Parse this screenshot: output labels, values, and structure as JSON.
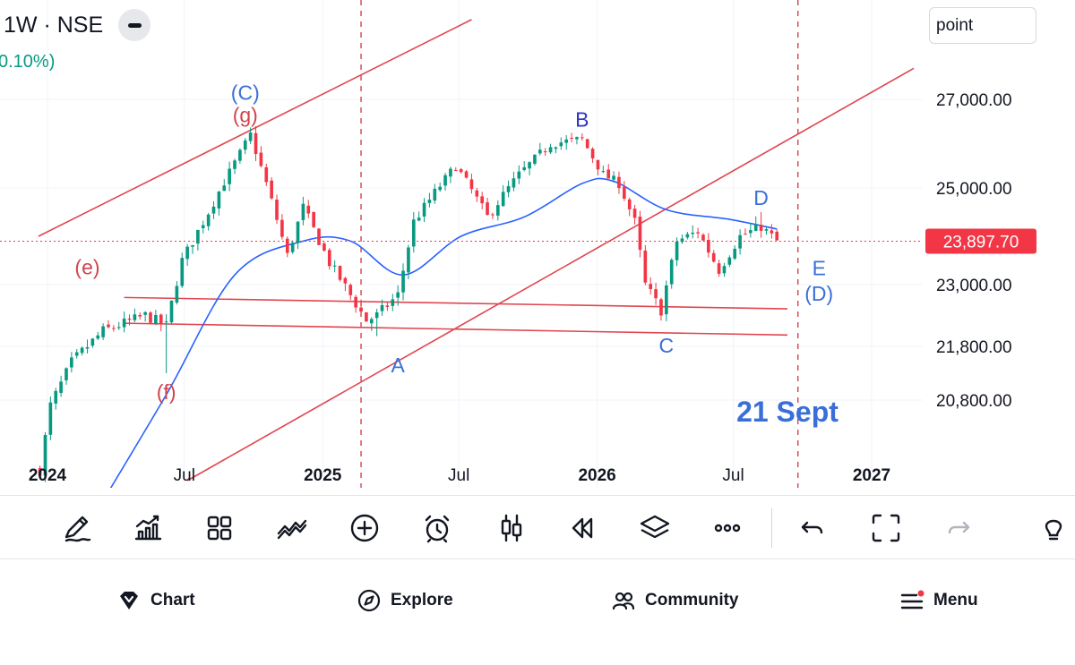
{
  "header": {
    "symbol_text": "1W · NSE",
    "change_text": "0.10%)",
    "unit_select": "point"
  },
  "colors": {
    "up": "#089981",
    "down": "#f23645",
    "ma": "#2962ff",
    "wave": "#3a6fd8",
    "wave_alt": "#d0454c",
    "channel": "#e0464f",
    "dashed": "#d0454c",
    "last_price_bg": "#f23645",
    "wave_dark": "#2c36c9"
  },
  "chart_data": {
    "type": "candlestick",
    "symbol": "1W · NSE",
    "interval": "1W",
    "x_axis": {
      "ticks": [
        {
          "date": "2024-01-01",
          "label": "2024",
          "bold": true
        },
        {
          "date": "2024-07-01",
          "label": "Jul",
          "bold": false
        },
        {
          "date": "2025-01-01",
          "label": "2025",
          "bold": true
        },
        {
          "date": "2025-07-01",
          "label": "Jul",
          "bold": false
        },
        {
          "date": "2026-01-01",
          "label": "2026",
          "bold": true
        },
        {
          "date": "2026-07-01",
          "label": "Jul",
          "bold": false
        },
        {
          "date": "2027-01-01",
          "label": "2027",
          "bold": true
        }
      ],
      "range": [
        "2023-12-20",
        "2027-03-15"
      ]
    },
    "y_axis": {
      "ticks": [
        {
          "value": 27000,
          "label": "27,000.00"
        },
        {
          "value": 25000,
          "label": "25,000.00"
        },
        {
          "value": 23000,
          "label": "23,000.00"
        },
        {
          "value": 21800,
          "label": "21,800.00"
        },
        {
          "value": 20800,
          "label": "20,800.00"
        }
      ],
      "last_price": {
        "value": 23897.7,
        "label": "23,897.70"
      }
    },
    "price_anchors": [
      {
        "date": "2023-12-22",
        "value": 19500
      },
      {
        "date": "2024-01-05",
        "value": 20700
      },
      {
        "date": "2024-02-02",
        "value": 21500
      },
      {
        "date": "2024-03-15",
        "value": 22100
      },
      {
        "date": "2024-05-10",
        "value": 22400
      },
      {
        "date": "2024-06-07",
        "value": 22200
      },
      {
        "date": "2024-06-28",
        "value": 23500
      },
      {
        "date": "2024-08-02",
        "value": 24500
      },
      {
        "date": "2024-09-27",
        "value": 26200
      },
      {
        "date": "2024-10-18",
        "value": 25100
      },
      {
        "date": "2024-11-15",
        "value": 23600
      },
      {
        "date": "2024-12-06",
        "value": 24600
      },
      {
        "date": "2025-01-10",
        "value": 23450
      },
      {
        "date": "2025-02-28",
        "value": 22300
      },
      {
        "date": "2025-03-14",
        "value": 22400
      },
      {
        "date": "2025-04-11",
        "value": 22800
      },
      {
        "date": "2025-05-02",
        "value": 24300
      },
      {
        "date": "2025-06-27",
        "value": 25500
      },
      {
        "date": "2025-08-08",
        "value": 24400
      },
      {
        "date": "2025-09-19",
        "value": 25300
      },
      {
        "date": "2025-10-31",
        "value": 26000
      },
      {
        "date": "2025-12-12",
        "value": 26100
      },
      {
        "date": "2026-01-09",
        "value": 25300
      },
      {
        "date": "2026-01-30",
        "value": 25100
      },
      {
        "date": "2026-02-20",
        "value": 24300
      },
      {
        "date": "2026-03-06",
        "value": 23000
      },
      {
        "date": "2026-03-27",
        "value": 22500
      },
      {
        "date": "2026-04-17",
        "value": 23900
      },
      {
        "date": "2026-05-15",
        "value": 24100
      },
      {
        "date": "2026-06-12",
        "value": 23300
      },
      {
        "date": "2026-07-10",
        "value": 24000
      },
      {
        "date": "2026-08-07",
        "value": 24200
      },
      {
        "date": "2026-08-28",
        "value": 23897.7
      }
    ],
    "moving_average_anchors": [
      {
        "date": "2024-03-01",
        "value": 18600
      },
      {
        "date": "2024-06-07",
        "value": 20900
      },
      {
        "date": "2024-09-06",
        "value": 23200
      },
      {
        "date": "2024-12-06",
        "value": 23900
      },
      {
        "date": "2025-02-07",
        "value": 23900
      },
      {
        "date": "2025-04-18",
        "value": 23200
      },
      {
        "date": "2025-07-04",
        "value": 24000
      },
      {
        "date": "2025-09-26",
        "value": 24400
      },
      {
        "date": "2025-12-12",
        "value": 25100
      },
      {
        "date": "2026-01-23",
        "value": 25150
      },
      {
        "date": "2026-04-03",
        "value": 24550
      },
      {
        "date": "2026-06-26",
        "value": 24350
      },
      {
        "date": "2026-08-28",
        "value": 24150
      }
    ],
    "pivot_wicks": [
      {
        "date": "2024-06-07",
        "low": 21300
      },
      {
        "date": "2025-03-14",
        "low": 22000
      },
      {
        "date": "2026-03-27",
        "low": 22300
      },
      {
        "date": "2024-10-04",
        "high": 26300
      },
      {
        "date": "2025-12-12",
        "high": 26200
      },
      {
        "date": "2026-08-07",
        "high": 24500
      }
    ],
    "channel_lines": [
      {
        "from": {
          "date": "2023-12-20",
          "value": 24000
        },
        "to": {
          "date": "2025-07-18",
          "value": 28800
        }
      },
      {
        "from": {
          "date": "2024-07-05",
          "value": 19300
        },
        "to": {
          "date": "2027-02-26",
          "value": 27700
        }
      }
    ],
    "support_lines": [
      {
        "from": {
          "date": "2024-04-12",
          "value": 22750
        },
        "to": {
          "date": "2026-09-11",
          "value": 22530
        }
      },
      {
        "from": {
          "date": "2024-04-12",
          "value": 22250
        },
        "to": {
          "date": "2026-09-11",
          "value": 22020
        }
      }
    ],
    "vertical_markers": [
      "2025-02-21",
      "2026-09-25"
    ],
    "annotations": [
      {
        "text": "(C)",
        "date": "2024-09-20",
        "value": 27150,
        "color_key": "wave"
      },
      {
        "text": "(g)",
        "date": "2024-09-20",
        "value": 26650,
        "color_key": "wave_alt"
      },
      {
        "text": "(e)",
        "date": "2024-02-23",
        "value": 23360,
        "color_key": "wave_alt"
      },
      {
        "text": "(f)",
        "date": "2024-06-07",
        "value": 20950,
        "color_key": "wave_alt"
      },
      {
        "text": "A",
        "date": "2025-04-11",
        "value": 21450,
        "color_key": "wave"
      },
      {
        "text": "B",
        "date": "2025-12-12",
        "value": 26550,
        "color_key": "wave_dark"
      },
      {
        "text": "C",
        "date": "2026-04-03",
        "value": 21820,
        "color_key": "wave"
      },
      {
        "text": "D",
        "date": "2026-08-07",
        "value": 24800,
        "color_key": "wave"
      },
      {
        "text": "E",
        "date": "2026-10-23",
        "value": 23340,
        "color_key": "wave"
      },
      {
        "text": "(D)",
        "date": "2026-10-23",
        "value": 22830,
        "color_key": "wave"
      },
      {
        "text": "21 Sept",
        "date": "2026-09-11",
        "value": 20580,
        "color_key": "wave"
      }
    ]
  },
  "toolbar": {
    "items": [
      {
        "icon": "draw-brush-icon"
      },
      {
        "icon": "indicators-icon"
      },
      {
        "icon": "grid-icon"
      },
      {
        "icon": "patterns-icon"
      },
      {
        "icon": "plus-circle-icon"
      },
      {
        "icon": "alarm-icon"
      },
      {
        "icon": "candles-icon"
      },
      {
        "icon": "replay-icon"
      },
      {
        "icon": "layers-icon"
      },
      {
        "icon": "more-icon"
      },
      {
        "icon": "undo-icon"
      },
      {
        "icon": "fullscreen-icon"
      },
      {
        "icon": "redo-icon"
      },
      {
        "icon": "idea-icon"
      }
    ]
  },
  "nav": {
    "chart": "Chart",
    "explore": "Explore",
    "community": "Community",
    "menu": "Menu"
  }
}
